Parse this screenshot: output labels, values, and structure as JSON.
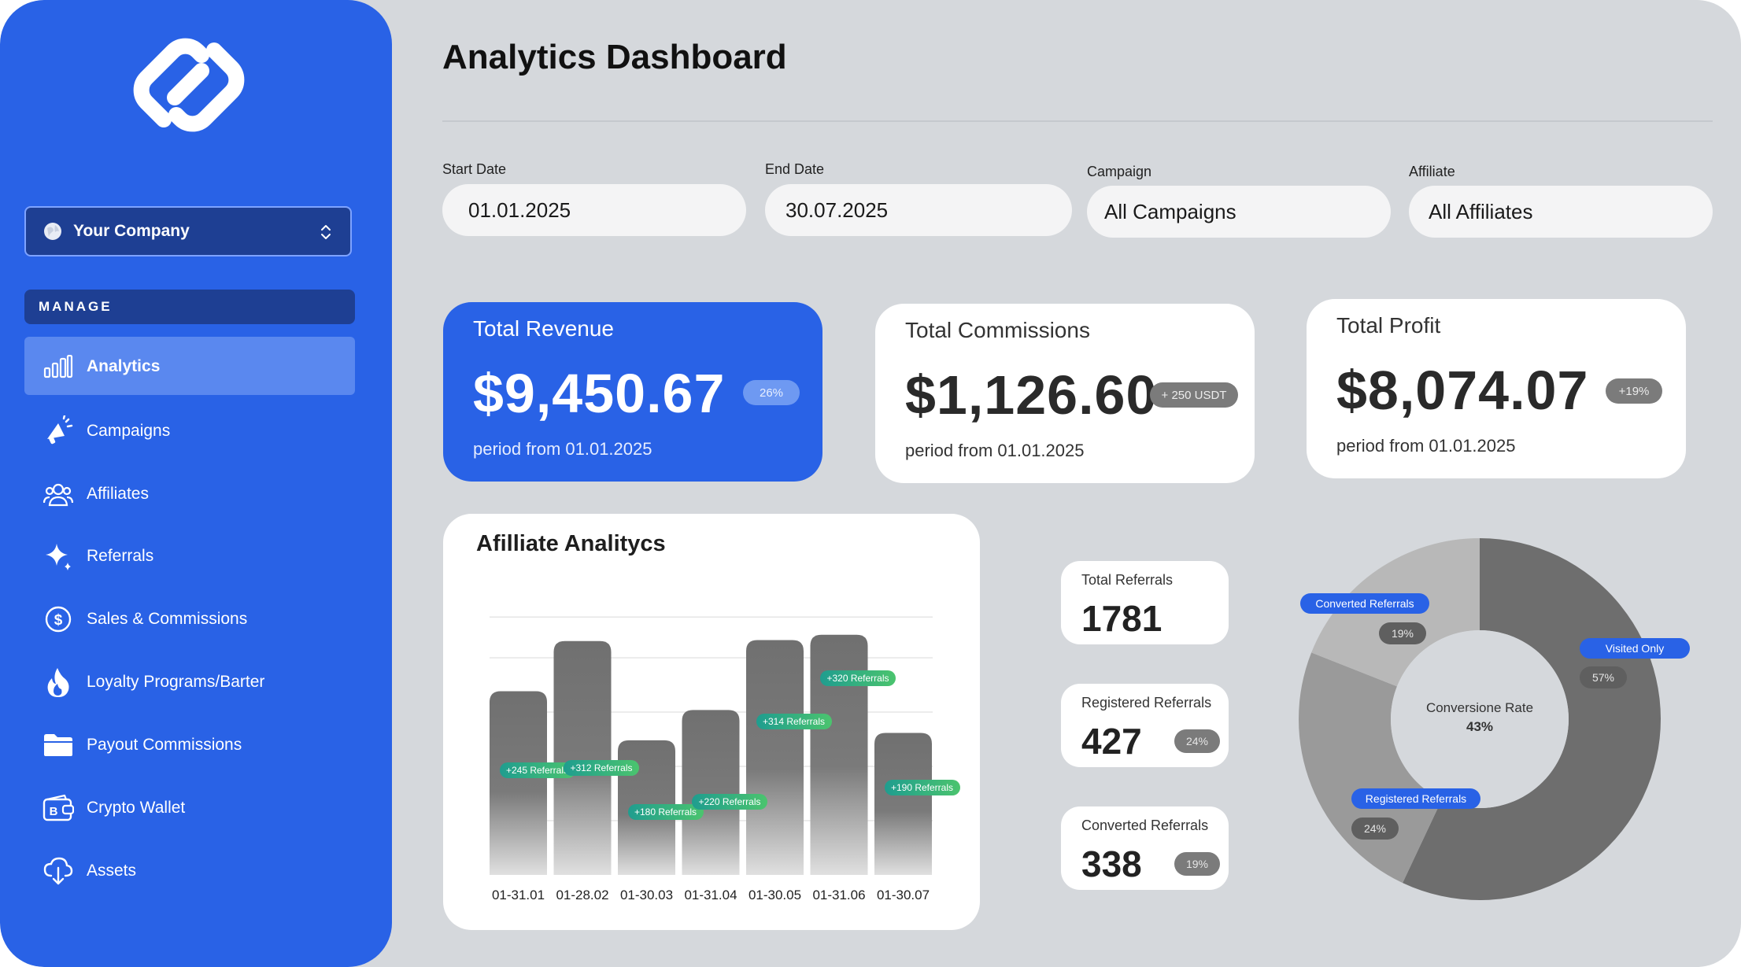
{
  "sidebar": {
    "company": "Your Company",
    "section": "MANAGE",
    "items": [
      {
        "label": "Analytics",
        "icon": "bar-chart-icon"
      },
      {
        "label": "Campaigns",
        "icon": "megaphone-icon"
      },
      {
        "label": "Affiliates",
        "icon": "users-icon"
      },
      {
        "label": "Referrals",
        "icon": "sparkle-icon"
      },
      {
        "label": "Sales & Commissions",
        "icon": "dollar-circle-icon"
      },
      {
        "label": "Loyalty Programs/Barter",
        "icon": "flame-icon"
      },
      {
        "label": "Payout Commissions",
        "icon": "folder-icon"
      },
      {
        "label": "Crypto Wallet",
        "icon": "bitcoin-wallet-icon"
      },
      {
        "label": "Assets",
        "icon": "cloud-download-icon"
      }
    ]
  },
  "header": {
    "title": "Analytics Dashboard"
  },
  "filters": {
    "start": {
      "label": "Start Date",
      "value": "01.01.2025"
    },
    "end": {
      "label": "End Date",
      "value": "30.07.2025"
    },
    "campaign": {
      "label": "Campaign",
      "value": "All Campaigns"
    },
    "affiliate": {
      "label": "Affiliate",
      "value": "All Affiliates"
    }
  },
  "kpis": {
    "revenue": {
      "title": "Total Revenue",
      "value": "$9,450.67",
      "badge": "26%",
      "period": "period from 01.01.2025"
    },
    "commissions": {
      "title": "Total Commissions",
      "value": "$1,126.60",
      "badge": "+ 250 USDT",
      "period": "period from 01.01.2025"
    },
    "profit": {
      "title": "Total Profit",
      "value": "$8,074.07",
      "badge": "+19%",
      "period": "period from 01.01.2025"
    }
  },
  "stats": {
    "total": {
      "label": "Total Referrals",
      "value": "1781"
    },
    "registered": {
      "label": "Registered Referrals",
      "value": "427",
      "badge": "24%"
    },
    "converted": {
      "label": "Converted Referrals",
      "value": "338",
      "badge": "19%"
    }
  },
  "chart_data": [
    {
      "type": "bar",
      "title": "Afilliate Analitycs",
      "categories": [
        "01-31.01",
        "01-28.02",
        "01-30.03",
        "01-31.04",
        "01-30.05",
        "01-31.06",
        "01-30.07"
      ],
      "values": [
        176,
        224,
        129,
        158,
        225,
        230,
        136
      ],
      "annotations": [
        "+245 Referrals",
        "+312 Referrals",
        "+180 Referrals",
        "+220 Referrals",
        "+314 Referrals",
        "+320 Referrals",
        "+190 Referrals"
      ],
      "ylim": [
        0,
        260
      ],
      "grid": true
    },
    {
      "type": "pie",
      "title": "Conversione Rate",
      "center_value": "43%",
      "slices": [
        {
          "label": "Visited Only",
          "value": 57,
          "display": "57%",
          "color": "#6e6e6e"
        },
        {
          "label": "Registered Referrals",
          "value": 24,
          "display": "24%",
          "color": "#9a9a9a"
        },
        {
          "label": "Converted Referrals",
          "value": 19,
          "display": "19%",
          "color": "#b8b8b8"
        }
      ]
    }
  ],
  "colors": {
    "accent": "#2962e6",
    "background": "#d5d8dc",
    "tag_green": "#3bb27a"
  }
}
